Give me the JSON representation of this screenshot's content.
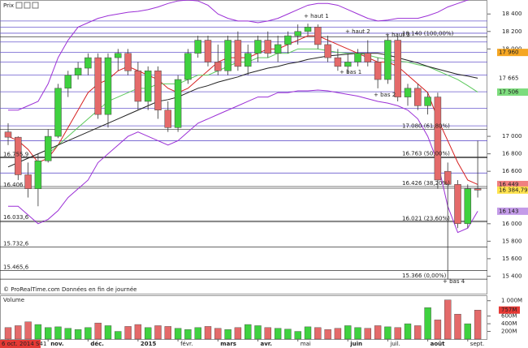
{
  "chart_data": {
    "type": "candlestick",
    "title": "Prix",
    "credit": "© ProRealTime.com Données en fin de journée",
    "categories": [
      "6 oct. 2014 S41",
      null,
      null,
      null,
      "nov.",
      null,
      null,
      null,
      "déc.",
      null,
      null,
      null,
      null,
      "2015",
      null,
      null,
      null,
      "févr.",
      null,
      null,
      null,
      "mars",
      null,
      null,
      null,
      "avr.",
      null,
      null,
      null,
      "mai",
      null,
      null,
      null,
      null,
      "juin",
      null,
      null,
      null,
      "juil.",
      null,
      null,
      null,
      "août",
      null,
      null,
      null,
      "sept.",
      null
    ],
    "open": [
      17050,
      16990,
      16560,
      16400,
      16720,
      17000,
      17550,
      17700,
      17780,
      17900,
      17250,
      17900,
      17950,
      17750,
      17400,
      17750,
      17300,
      17100,
      17650,
      17950,
      18100,
      17850,
      17750,
      18100,
      17800,
      17950,
      18100,
      17950,
      18050,
      18150,
      18200,
      18250,
      18050,
      17900,
      17800,
      17850,
      17950,
      17850,
      17650,
      18100,
      17450,
      17550,
      17350,
      17450,
      16600,
      16450,
      16000,
      16400
    ],
    "high": [
      17150,
      17000,
      16700,
      16800,
      17080,
      17600,
      17750,
      17850,
      17950,
      17950,
      17950,
      18000,
      18000,
      17850,
      17800,
      17800,
      17400,
      17700,
      18000,
      18150,
      18150,
      18050,
      18150,
      18200,
      18050,
      18150,
      18200,
      18150,
      18200,
      18280,
      18290,
      18280,
      18150,
      18000,
      17950,
      18000,
      18100,
      17900,
      18160,
      18150,
      17600,
      17600,
      17500,
      17500,
      16700,
      16500,
      16450,
      16950
    ],
    "low": [
      16900,
      16500,
      16300,
      16200,
      16700,
      16980,
      17450,
      17650,
      17700,
      17200,
      17100,
      17750,
      17700,
      17300,
      17300,
      17200,
      17050,
      17050,
      17600,
      17900,
      17800,
      17700,
      17700,
      17750,
      17700,
      17850,
      17900,
      17850,
      17950,
      18050,
      18150,
      18000,
      17850,
      17750,
      17720,
      17800,
      17800,
      17550,
      17600,
      17400,
      17350,
      17300,
      17250,
      16400,
      15366,
      15950,
      15950,
      16300
    ],
    "close": [
      16990,
      16560,
      16400,
      16720,
      17000,
      17550,
      17700,
      17780,
      17900,
      17250,
      17900,
      17950,
      17750,
      17400,
      17750,
      17300,
      17100,
      17650,
      17950,
      18100,
      17850,
      17750,
      18100,
      17800,
      17950,
      18100,
      17950,
      18050,
      18150,
      18200,
      18250,
      18050,
      17900,
      17800,
      17850,
      17950,
      17850,
      17650,
      18100,
      17450,
      17550,
      17350,
      17450,
      16500,
      16450,
      16000,
      16400,
      16384.79
    ],
    "up_color": "#3fd13f",
    "down_color": "#e46a6a",
    "lines": [
      {
        "color": "#d62020",
        "values": [
          17000,
          16950,
          16850,
          16700,
          16750,
          16900,
          17100,
          17300,
          17500,
          17600,
          17650,
          17750,
          17800,
          17750,
          17700,
          17650,
          17550,
          17500,
          17550,
          17650,
          17750,
          17850,
          17900,
          17900,
          17900,
          17950,
          18000,
          18000,
          18050,
          18100,
          18150,
          18150,
          18100,
          18050,
          18000,
          17950,
          17900,
          17850,
          17850,
          17800,
          17700,
          17600,
          17500,
          17200,
          16950,
          16700,
          16500,
          16449
        ]
      },
      {
        "color": "#5cc85c",
        "values": [
          null,
          null,
          null,
          null,
          16800,
          16900,
          17000,
          17100,
          17200,
          17300,
          17400,
          17450,
          17500,
          17550,
          17550,
          17600,
          17600,
          17600,
          17650,
          17700,
          17700,
          17750,
          17800,
          17850,
          17850,
          17900,
          17900,
          17950,
          17950,
          18000,
          18000,
          18000,
          17980,
          17960,
          17950,
          17950,
          17930,
          17900,
          17880,
          17860,
          17850,
          17820,
          17800,
          17750,
          17700,
          17650,
          17580,
          17506
        ]
      },
      {
        "color": "#222222",
        "values": [
          16650,
          16700,
          16750,
          16800,
          16850,
          16900,
          16950,
          17000,
          17050,
          17100,
          17150,
          17200,
          17250,
          17300,
          17350,
          17400,
          17420,
          17450,
          17500,
          17550,
          17580,
          17620,
          17650,
          17680,
          17720,
          17750,
          17780,
          17800,
          17830,
          17850,
          17880,
          17900,
          17920,
          17930,
          17940,
          17950,
          17950,
          17950,
          17930,
          17900,
          17870,
          17840,
          17800,
          17770,
          17740,
          17710,
          17690,
          17665
        ]
      },
      {
        "color": "#9b2fd6",
        "values": [
          17300,
          17300,
          17350,
          17400,
          17600,
          17900,
          18100,
          18250,
          18300,
          18350,
          18380,
          18400,
          18420,
          18430,
          18450,
          18480,
          18520,
          18550,
          18560,
          18550,
          18500,
          18400,
          18350,
          18320,
          18320,
          18300,
          18320,
          18350,
          18400,
          18450,
          18500,
          18520,
          18520,
          18500,
          18450,
          18400,
          18350,
          18320,
          18330,
          18350,
          18350,
          18350,
          18380,
          18420,
          18480,
          18520,
          18560,
          18600
        ]
      },
      {
        "color": "#9b2fd6",
        "values": [
          16200,
          16200,
          16100,
          16000,
          16050,
          16150,
          16300,
          16400,
          16500,
          16700,
          16800,
          16900,
          17000,
          17050,
          17000,
          16950,
          16900,
          16950,
          17050,
          17150,
          17200,
          17250,
          17300,
          17350,
          17400,
          17450,
          17450,
          17500,
          17500,
          17520,
          17520,
          17530,
          17520,
          17500,
          17480,
          17460,
          17430,
          17400,
          17380,
          17350,
          17300,
          17200,
          17000,
          16700,
          16200,
          15900,
          15950,
          16143
        ]
      }
    ],
    "level_color": "#6a5acd",
    "levels": [
      18320,
      18250,
      18180,
      18080,
      17960,
      17850,
      17700,
      17510,
      17320,
      17120,
      16950,
      16580
    ],
    "fibonacci": [
      {
        "value": 18140,
        "label": "18.140 (100,00%)"
      },
      {
        "value": 17080,
        "label": "17.080 (61,80%)"
      },
      {
        "value": 16763,
        "label": "16.763 (50,00%)"
      },
      {
        "value": 16426,
        "label": "16.426 (38,20%)"
      },
      {
        "value": 16021,
        "label": "16.021 (23,60%)"
      },
      {
        "value": 15366,
        "label": "15.366 (0,00%)"
      }
    ],
    "left_levels": [
      {
        "value": 16755.9,
        "label": "16.755,9"
      },
      {
        "value": 16406,
        "label": "16.406"
      },
      {
        "value": 16033.6,
        "label": "16.033,6"
      },
      {
        "value": 15732.6,
        "label": "15.732,6"
      },
      {
        "value": 15465.6,
        "label": "15.465,6"
      }
    ],
    "annotations": [
      "+ haut 1",
      "+ haut 2",
      "+ haut 3",
      "+ bas 1",
      "+ bas 2",
      "+ bas 4"
    ],
    "ylim": [
      15200,
      18560
    ],
    "yticks": [
      {
        "value": 18400,
        "label": "18 400"
      },
      {
        "value": 18200,
        "label": "18 200"
      },
      {
        "value": 18000,
        "label": "18 000"
      },
      {
        "value": 17000,
        "label": "17 000"
      },
      {
        "value": 16800,
        "label": "16 800"
      },
      {
        "value": 16600,
        "label": "16 600"
      },
      {
        "value": 16000,
        "label": "16 000"
      },
      {
        "value": 15800,
        "label": "15 800"
      },
      {
        "value": 15600,
        "label": "15 600"
      },
      {
        "value": 15400,
        "label": "15 400"
      }
    ],
    "markers": [
      {
        "value": 17960,
        "label": "17 960",
        "color": "#f5a623"
      },
      {
        "value": 17665,
        "label": "17 665",
        "color": "#ffffff"
      },
      {
        "value": 17506,
        "label": "17 506",
        "color": "#7ddc7d"
      },
      {
        "value": 16449,
        "label": "16 449",
        "color": "#f08080"
      },
      {
        "value": 16384.79,
        "label": "16 384,79",
        "color": "#ffe34d"
      },
      {
        "value": 16143,
        "label": "16 143",
        "color": "#c39be8"
      }
    ],
    "volume": {
      "title": "Volume",
      "values": [
        300,
        350,
        450,
        380,
        300,
        320,
        280,
        250,
        300,
        420,
        350,
        200,
        330,
        380,
        300,
        350,
        330,
        280,
        250,
        300,
        330,
        280,
        250,
        300,
        380,
        350,
        300,
        280,
        260,
        200,
        320,
        300,
        250,
        280,
        350,
        300,
        280,
        350,
        320,
        300,
        400,
        350,
        820,
        500,
        1020,
        650,
        400,
        757
      ],
      "ylim": [
        0,
        1100
      ],
      "yticks": [
        {
          "value": 1000,
          "label": "1 000M"
        },
        {
          "value": 600,
          "label": "600M"
        },
        {
          "value": 400,
          "label": "400M"
        },
        {
          "value": 200,
          "label": "200M"
        }
      ],
      "marker": {
        "value": 757,
        "label": "757M",
        "color": "#e53935"
      }
    }
  }
}
